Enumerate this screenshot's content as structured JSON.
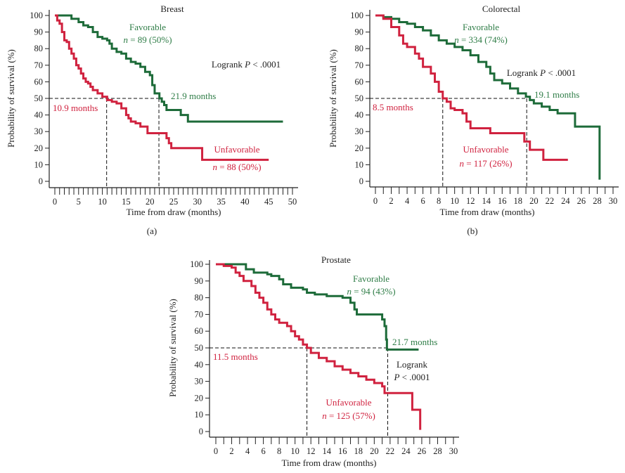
{
  "colors": {
    "favorable": "#1d6b39",
    "unfavorable": "#d0223f",
    "text_green": "#2f7d47",
    "text_red": "#d0223f",
    "axis": "#222222"
  },
  "chart_data": [
    {
      "id": "a",
      "type": "line",
      "subtype": "kaplan-meier step",
      "title": "Breast",
      "panel_label": "(a)",
      "xlabel": "Time from draw (months)",
      "ylabel": "Probability of survival (%)",
      "xlim": [
        0,
        50
      ],
      "ylim": [
        0,
        100
      ],
      "xticks": [
        0,
        5,
        10,
        15,
        20,
        25,
        30,
        35,
        40,
        45,
        50
      ],
      "xminor_step": 1,
      "yticks": [
        0,
        10,
        20,
        30,
        40,
        50,
        60,
        70,
        80,
        90,
        100
      ],
      "logrank": [
        "Logrank P < .0001"
      ],
      "series": [
        {
          "name": "Favorable",
          "n_label": "n = 89 (50%)",
          "median": 21.9,
          "median_label": "21.9 months",
          "points": [
            [
              0,
              100
            ],
            [
              3,
              100
            ],
            [
              3.5,
              98
            ],
            [
              5,
              96
            ],
            [
              6,
              94
            ],
            [
              7,
              93
            ],
            [
              8,
              90
            ],
            [
              9,
              87
            ],
            [
              10,
              86
            ],
            [
              11,
              85
            ],
            [
              11.5,
              83
            ],
            [
              12,
              80
            ],
            [
              13,
              78
            ],
            [
              14,
              77
            ],
            [
              15,
              74
            ],
            [
              16,
              72
            ],
            [
              17,
              71
            ],
            [
              18,
              69
            ],
            [
              19,
              66
            ],
            [
              20,
              64
            ],
            [
              20.5,
              58
            ],
            [
              21,
              53
            ],
            [
              22,
              50
            ],
            [
              22.5,
              48
            ],
            [
              23,
              46
            ],
            [
              23.5,
              43
            ],
            [
              26.5,
              40
            ],
            [
              28,
              36
            ],
            [
              48,
              36
            ]
          ]
        },
        {
          "name": "Unfavorable",
          "n_label": "n = 88 (50%)",
          "median": 10.9,
          "median_label": "10.9 months",
          "points": [
            [
              0,
              100
            ],
            [
              0.5,
              97
            ],
            [
              1,
              95
            ],
            [
              1.5,
              90
            ],
            [
              2,
              85
            ],
            [
              2.5,
              84
            ],
            [
              3,
              80
            ],
            [
              3.5,
              77
            ],
            [
              4,
              74
            ],
            [
              4.5,
              70
            ],
            [
              5,
              68
            ],
            [
              5.5,
              65
            ],
            [
              6,
              62
            ],
            [
              6.5,
              60
            ],
            [
              7,
              59
            ],
            [
              7.5,
              57
            ],
            [
              8,
              55
            ],
            [
              9,
              53
            ],
            [
              10,
              51
            ],
            [
              11,
              49
            ],
            [
              12,
              48
            ],
            [
              13,
              47
            ],
            [
              14,
              44
            ],
            [
              15,
              40
            ],
            [
              15.5,
              38
            ],
            [
              16,
              36
            ],
            [
              17,
              35
            ],
            [
              18,
              33
            ],
            [
              19,
              33
            ],
            [
              19.5,
              29
            ],
            [
              23.5,
              26
            ],
            [
              24,
              23
            ],
            [
              24.5,
              20
            ],
            [
              31,
              20
            ],
            [
              31,
              13
            ],
            [
              45,
              13
            ]
          ]
        }
      ]
    },
    {
      "id": "b",
      "type": "line",
      "subtype": "kaplan-meier step",
      "title": "Colorectal",
      "panel_label": "(b)",
      "xlabel": "Time from draw (months)",
      "ylabel": "Probability of survival (%)",
      "xlim": [
        0,
        30
      ],
      "ylim": [
        0,
        100
      ],
      "xticks": [
        0,
        2,
        4,
        6,
        8,
        10,
        12,
        14,
        16,
        18,
        20,
        22,
        24,
        26,
        28,
        30
      ],
      "xminor_step": 1,
      "yticks": [
        0,
        10,
        20,
        30,
        40,
        50,
        60,
        70,
        80,
        90,
        100
      ],
      "logrank": [
        "Logrank P < .0001"
      ],
      "series": [
        {
          "name": "Favorable",
          "n_label": "n = 334 (74%)",
          "median": 19.1,
          "median_label": "19.1 months",
          "points": [
            [
              0,
              100
            ],
            [
              1,
              99
            ],
            [
              2,
              98
            ],
            [
              3,
              96
            ],
            [
              4,
              95
            ],
            [
              5,
              93
            ],
            [
              6,
              91
            ],
            [
              7,
              88
            ],
            [
              8,
              85
            ],
            [
              9,
              83
            ],
            [
              10,
              81
            ],
            [
              11,
              79
            ],
            [
              12,
              76
            ],
            [
              13,
              72
            ],
            [
              14,
              69
            ],
            [
              14.5,
              65
            ],
            [
              15,
              61
            ],
            [
              16,
              59
            ],
            [
              17,
              56
            ],
            [
              18,
              53
            ],
            [
              19,
              51
            ],
            [
              19.5,
              49
            ],
            [
              20,
              47
            ],
            [
              21,
              45
            ],
            [
              22,
              43
            ],
            [
              23,
              41
            ],
            [
              25.2,
              33
            ],
            [
              28.3,
              1
            ]
          ]
        },
        {
          "name": "Unfavorable",
          "n_label": "n = 117 (26%)",
          "median": 8.5,
          "median_label": "8.5 months",
          "points": [
            [
              0,
              100
            ],
            [
              1,
              98
            ],
            [
              2,
              93
            ],
            [
              3,
              88
            ],
            [
              3.5,
              83
            ],
            [
              4,
              81
            ],
            [
              5,
              77
            ],
            [
              5.5,
              74
            ],
            [
              6,
              69
            ],
            [
              7,
              65
            ],
            [
              7.5,
              60
            ],
            [
              8,
              54
            ],
            [
              8.5,
              50
            ],
            [
              9,
              48
            ],
            [
              9.5,
              44
            ],
            [
              10,
              43
            ],
            [
              11,
              41
            ],
            [
              11.5,
              36
            ],
            [
              12,
              32
            ],
            [
              14.5,
              29
            ],
            [
              18.8,
              24
            ],
            [
              19.5,
              19
            ],
            [
              21.2,
              13
            ],
            [
              24.3,
              13
            ]
          ]
        }
      ]
    },
    {
      "id": "c",
      "type": "line",
      "subtype": "kaplan-meier step",
      "title": "Prostate",
      "panel_label": "",
      "xlabel": "Time from draw (months)",
      "ylabel": "Probability of survival (%)",
      "xlim": [
        0,
        30
      ],
      "ylim": [
        0,
        100
      ],
      "xticks": [
        0,
        2,
        4,
        6,
        8,
        10,
        12,
        14,
        16,
        18,
        20,
        22,
        24,
        26,
        28,
        30
      ],
      "xminor_step": 1,
      "yticks": [
        0,
        10,
        20,
        30,
        40,
        50,
        60,
        70,
        80,
        90,
        100
      ],
      "logrank": [
        "Logrank",
        "P < .0001"
      ],
      "series": [
        {
          "name": "Favorable",
          "n_label": "n = 94 (43%)",
          "median": 21.7,
          "median_label": "21.7 months",
          "points": [
            [
              0,
              100
            ],
            [
              3.8,
              97
            ],
            [
              4.8,
              95
            ],
            [
              6.5,
              94
            ],
            [
              7,
              93
            ],
            [
              8,
              91
            ],
            [
              8.5,
              88
            ],
            [
              9.5,
              86
            ],
            [
              11,
              85
            ],
            [
              11.5,
              83
            ],
            [
              12.5,
              82
            ],
            [
              14,
              81
            ],
            [
              16,
              80
            ],
            [
              17,
              77
            ],
            [
              17.5,
              73
            ],
            [
              17.8,
              70
            ],
            [
              21,
              67
            ],
            [
              21.3,
              63
            ],
            [
              21.5,
              55
            ],
            [
              21.6,
              49
            ],
            [
              25.6,
              49
            ]
          ]
        },
        {
          "name": "Unfavorable",
          "n_label": "n = 125 (57%)",
          "median": 11.5,
          "median_label": "11.5 months",
          "points": [
            [
              0,
              100
            ],
            [
              1,
              99
            ],
            [
              2,
              98
            ],
            [
              2.5,
              95
            ],
            [
              3,
              93
            ],
            [
              3.5,
              90
            ],
            [
              4.5,
              87
            ],
            [
              5,
              83
            ],
            [
              5.5,
              80
            ],
            [
              6,
              77
            ],
            [
              6.5,
              73
            ],
            [
              7,
              70
            ],
            [
              7.5,
              67
            ],
            [
              8,
              65
            ],
            [
              9,
              63
            ],
            [
              9.5,
              60
            ],
            [
              10,
              57
            ],
            [
              10.5,
              55
            ],
            [
              11,
              52
            ],
            [
              11.5,
              50
            ],
            [
              12,
              47
            ],
            [
              13,
              44
            ],
            [
              14,
              42
            ],
            [
              15,
              39
            ],
            [
              16,
              37
            ],
            [
              17,
              35
            ],
            [
              18,
              33
            ],
            [
              19,
              31
            ],
            [
              20,
              29
            ],
            [
              21,
              27
            ],
            [
              21.3,
              23
            ],
            [
              24.8,
              13
            ],
            [
              25.8,
              12
            ],
            [
              25.8,
              1
            ]
          ]
        }
      ]
    }
  ]
}
